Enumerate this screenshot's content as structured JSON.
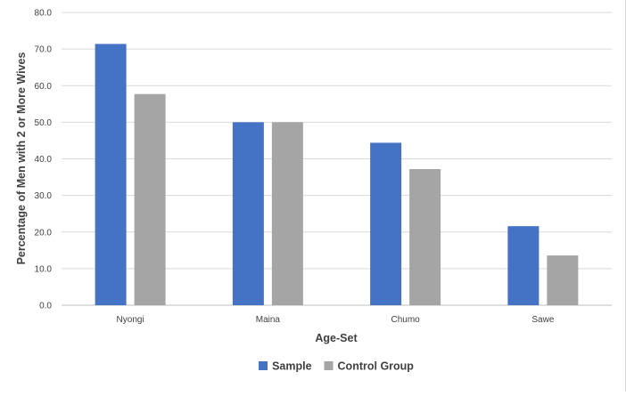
{
  "chart_data": {
    "type": "bar",
    "title": "",
    "xlabel": "Age-Set",
    "ylabel": "Percentage of Men with 2 or More Wives",
    "categories": [
      "Nyongi",
      "Maina",
      "Chumo",
      "Sawe"
    ],
    "series": [
      {
        "name": "Sample",
        "color": "#4472c4",
        "values": [
          71.4,
          50.0,
          44.4,
          21.6
        ]
      },
      {
        "name": "Control Group",
        "color": "#a5a5a5",
        "values": [
          57.7,
          50.0,
          37.2,
          13.6
        ]
      }
    ],
    "ylim": [
      0,
      80
    ],
    "yticks": [
      "0.0",
      "10.0",
      "20.0",
      "30.0",
      "40.0",
      "50.0",
      "60.0",
      "70.0",
      "80.0"
    ],
    "grid": true,
    "legend_position": "bottom"
  }
}
